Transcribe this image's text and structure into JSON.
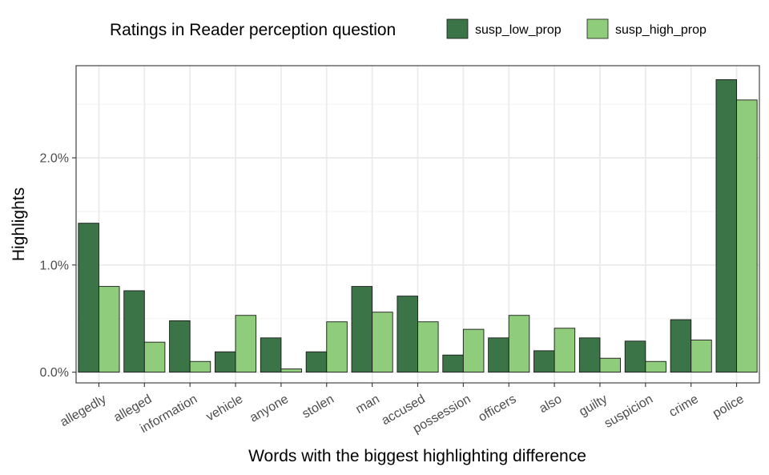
{
  "chart_data": {
    "type": "bar",
    "xlabel": "Words with the biggest highlighting difference",
    "ylabel": "Highlights",
    "ylim": [
      -0.1,
      2.86
    ],
    "y_ticks": [
      0.0,
      1.0,
      2.0
    ],
    "y_tick_labels": [
      "0.0%",
      "1.0%",
      "2.0%"
    ],
    "y_unit": "%",
    "grid": true,
    "legend": {
      "title": "Ratings in Reader perception question",
      "placement": "top"
    },
    "categories": [
      "allegedly",
      "alleged",
      "information",
      "vehicle",
      "anyone",
      "stolen",
      "man",
      "accused",
      "possession",
      "officers",
      "also",
      "guilty",
      "suspicion",
      "crime",
      "police"
    ],
    "series": [
      {
        "name": "susp_low_prop",
        "color": "#3b7447",
        "values": [
          1.39,
          0.76,
          0.48,
          0.19,
          0.32,
          0.19,
          0.8,
          0.71,
          0.16,
          0.32,
          0.2,
          0.32,
          0.29,
          0.49,
          2.73
        ]
      },
      {
        "name": "susp_high_prop",
        "color": "#8fcc7b",
        "values": [
          0.8,
          0.28,
          0.1,
          0.53,
          0.03,
          0.47,
          0.56,
          0.47,
          0.4,
          0.53,
          0.41,
          0.13,
          0.1,
          0.3,
          2.54
        ]
      }
    ]
  }
}
